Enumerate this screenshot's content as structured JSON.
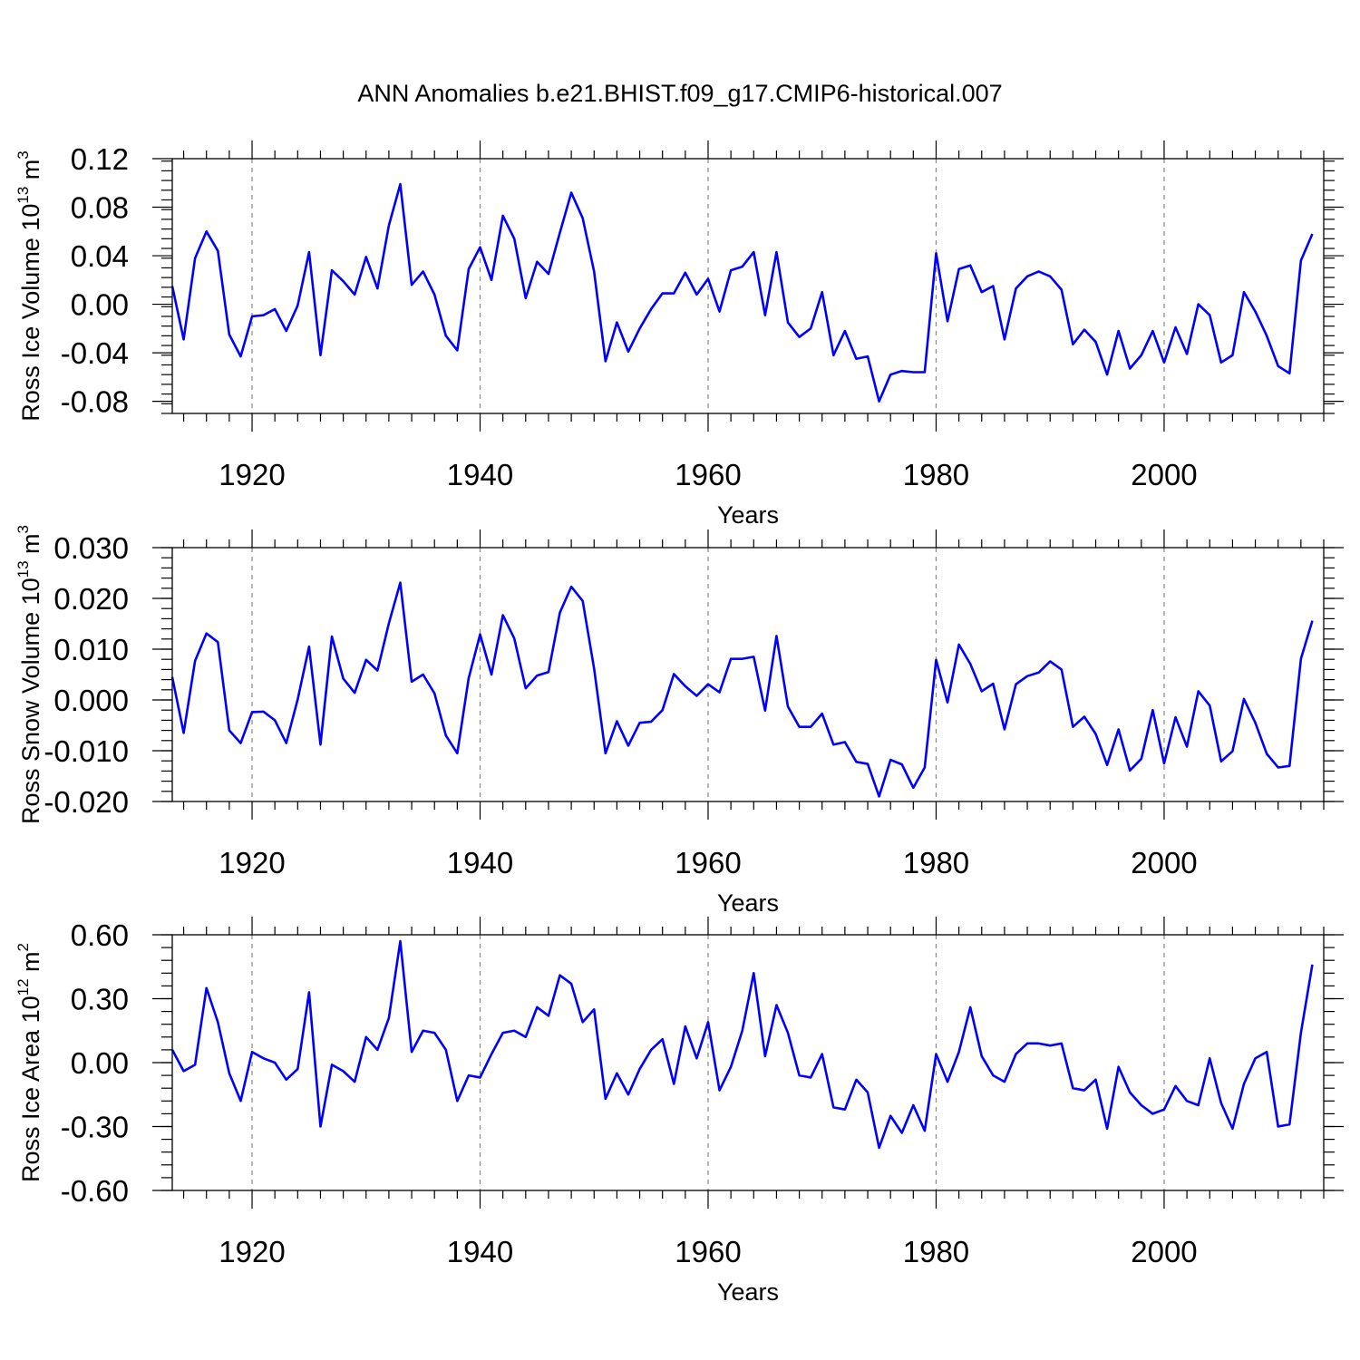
{
  "chart_data": {
    "type": "line",
    "title": "ANN Anomalies b.e21.BHIST.f09_g17.CMIP6-historical.007",
    "x_start": 1913,
    "panels": [
      {
        "name": "ice-volume",
        "ylabel": "Ross Ice Volume 10",
        "ylabel_exp": "13",
        "ylabel_unit": " m",
        "ylabel_unit_exp": "3",
        "xlabel": "Years",
        "xlim": [
          1913,
          2014
        ],
        "ylim": [
          -0.09,
          0.12
        ],
        "yticks": [
          -0.08,
          -0.04,
          0.0,
          0.04,
          0.08,
          0.12
        ],
        "ytick_labels": [
          "-0.08",
          "-0.04",
          "0.00",
          "0.04",
          "0.08",
          "0.12"
        ],
        "xticks": [
          1920,
          1940,
          1960,
          1980,
          2000
        ],
        "xtick_labels": [
          "1920",
          "1940",
          "1960",
          "1980",
          "2000"
        ],
        "values": [
          0.015,
          -0.029,
          0.038,
          0.06,
          0.044,
          -0.025,
          -0.043,
          -0.01,
          -0.009,
          -0.004,
          -0.022,
          -0.001,
          0.043,
          -0.042,
          0.028,
          0.019,
          0.008,
          0.039,
          0.013,
          0.065,
          0.099,
          0.016,
          0.027,
          0.008,
          -0.026,
          -0.038,
          0.029,
          0.047,
          0.02,
          0.073,
          0.054,
          0.005,
          0.035,
          0.025,
          0.059,
          0.092,
          0.071,
          0.027,
          -0.047,
          -0.015,
          -0.039,
          -0.02,
          -0.004,
          0.009,
          0.009,
          0.026,
          0.008,
          0.021,
          -0.006,
          0.028,
          0.031,
          0.043,
          -0.009,
          0.043,
          -0.015,
          -0.027,
          -0.02,
          0.01,
          -0.042,
          -0.022,
          -0.045,
          -0.043,
          -0.08,
          -0.058,
          -0.055,
          -0.056,
          -0.056,
          0.042,
          -0.014,
          0.029,
          0.032,
          0.01,
          0.015,
          -0.029,
          0.013,
          0.023,
          0.027,
          0.023,
          0.012,
          -0.033,
          -0.021,
          -0.031,
          -0.058,
          -0.022,
          -0.053,
          -0.042,
          -0.022,
          -0.048,
          -0.019,
          -0.041,
          0.0,
          -0.009,
          -0.048,
          -0.042,
          0.01,
          -0.006,
          -0.026,
          -0.051,
          -0.057,
          0.036,
          0.058
        ]
      },
      {
        "name": "snow-volume",
        "ylabel": "Ross Snow Volume 10",
        "ylabel_exp": "13",
        "ylabel_unit": " m",
        "ylabel_unit_exp": "3",
        "xlabel": "Years",
        "xlim": [
          1913,
          2014
        ],
        "ylim": [
          -0.02,
          0.03
        ],
        "yticks": [
          -0.02,
          -0.01,
          0.0,
          0.01,
          0.02,
          0.03
        ],
        "ytick_labels": [
          "-0.020",
          "-0.010",
          "0.000",
          "0.010",
          "0.020",
          "0.030"
        ],
        "xticks": [
          1920,
          1940,
          1960,
          1980,
          2000
        ],
        "xtick_labels": [
          "1920",
          "1940",
          "1960",
          "1980",
          "2000"
        ],
        "values": [
          0.0045,
          -0.0065,
          0.0077,
          0.0131,
          0.0114,
          -0.006,
          -0.0085,
          -0.0024,
          -0.0023,
          -0.004,
          -0.0085,
          0.0001,
          0.0105,
          -0.0088,
          0.0125,
          0.0042,
          0.0014,
          0.0079,
          0.0058,
          0.0151,
          0.0231,
          0.0036,
          0.005,
          0.0013,
          -0.007,
          -0.0105,
          0.0043,
          0.0129,
          0.005,
          0.0167,
          0.0121,
          0.0023,
          0.0048,
          0.0055,
          0.0172,
          0.0223,
          0.0195,
          0.0062,
          -0.0105,
          -0.0042,
          -0.009,
          -0.0045,
          -0.0043,
          -0.002,
          0.0051,
          0.0027,
          0.0008,
          0.0031,
          0.0015,
          0.0081,
          0.0081,
          0.0085,
          -0.0021,
          0.0126,
          -0.0013,
          -0.0053,
          -0.0053,
          -0.0027,
          -0.0088,
          -0.0083,
          -0.0122,
          -0.0126,
          -0.019,
          -0.0118,
          -0.0127,
          -0.0173,
          -0.0133,
          0.0079,
          -0.0005,
          0.0109,
          0.0071,
          0.0017,
          0.0032,
          -0.0058,
          0.0031,
          0.0047,
          0.0054,
          0.0076,
          0.006,
          -0.0053,
          -0.0033,
          -0.0067,
          -0.0128,
          -0.0058,
          -0.0139,
          -0.0116,
          -0.002,
          -0.0125,
          -0.0034,
          -0.0092,
          0.0017,
          -0.0011,
          -0.0121,
          -0.0101,
          0.0002,
          -0.0045,
          -0.0106,
          -0.0133,
          -0.013,
          0.0081,
          0.0156
        ]
      },
      {
        "name": "ice-area",
        "ylabel": "Ross Ice Area 10",
        "ylabel_exp": "12",
        "ylabel_unit": " m",
        "ylabel_unit_exp": "2",
        "xlabel": "Years",
        "xlim": [
          1913,
          2014
        ],
        "ylim": [
          -0.6,
          0.6
        ],
        "yticks": [
          -0.6,
          -0.3,
          0.0,
          0.3,
          0.6
        ],
        "ytick_labels": [
          "-0.60",
          "-0.30",
          "0.00",
          "0.30",
          "0.60"
        ],
        "xticks": [
          1920,
          1940,
          1960,
          1980,
          2000
        ],
        "xtick_labels": [
          "1920",
          "1940",
          "1960",
          "1980",
          "2000"
        ],
        "values": [
          0.06,
          -0.04,
          -0.01,
          0.35,
          0.19,
          -0.05,
          -0.18,
          0.05,
          0.02,
          0.0,
          -0.08,
          -0.03,
          0.33,
          -0.3,
          -0.01,
          -0.04,
          -0.09,
          0.12,
          0.06,
          0.21,
          0.57,
          0.05,
          0.15,
          0.14,
          0.06,
          -0.18,
          -0.06,
          -0.07,
          0.04,
          0.14,
          0.15,
          0.12,
          0.26,
          0.22,
          0.41,
          0.37,
          0.19,
          0.25,
          -0.17,
          -0.05,
          -0.15,
          -0.03,
          0.06,
          0.11,
          -0.1,
          0.17,
          0.02,
          0.19,
          -0.13,
          -0.02,
          0.15,
          0.42,
          0.03,
          0.27,
          0.14,
          -0.06,
          -0.07,
          0.04,
          -0.21,
          -0.22,
          -0.08,
          -0.14,
          -0.4,
          -0.25,
          -0.33,
          -0.2,
          -0.32,
          0.04,
          -0.09,
          0.05,
          0.26,
          0.03,
          -0.06,
          -0.09,
          0.04,
          0.09,
          0.09,
          0.08,
          0.09,
          -0.12,
          -0.13,
          -0.08,
          -0.31,
          -0.02,
          -0.14,
          -0.2,
          -0.24,
          -0.22,
          -0.11,
          -0.18,
          -0.2,
          0.02,
          -0.19,
          -0.31,
          -0.1,
          0.02,
          0.05,
          -0.3,
          -0.29,
          0.14,
          0.46
        ]
      }
    ]
  }
}
